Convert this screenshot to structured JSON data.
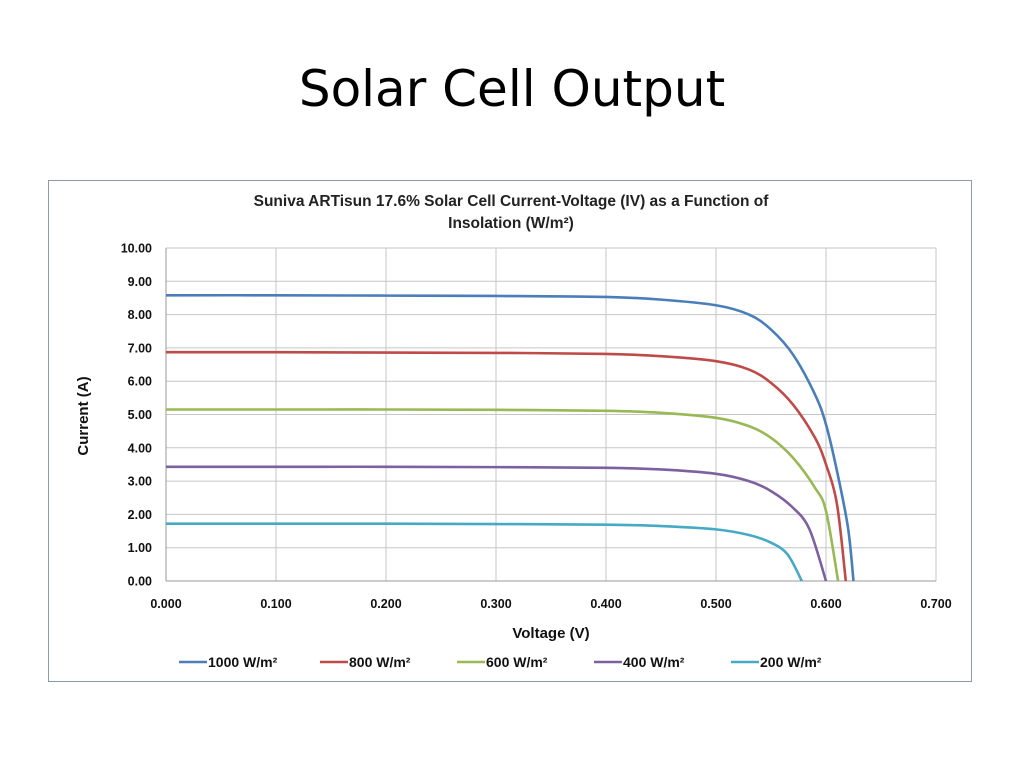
{
  "slide": {
    "title": "Solar Cell Output"
  },
  "chart_data": {
    "type": "line",
    "title_lines": [
      "Suniva ARTisun 17.6% Solar Cell Current-Voltage (IV) as a Function of",
      "Insolation (W/m²)"
    ],
    "xlabel": "Voltage (V)",
    "ylabel": "Current (A)",
    "xlim": [
      0,
      0.7
    ],
    "ylim": [
      0,
      10
    ],
    "x_ticks": [
      "0.000",
      "0.100",
      "0.200",
      "0.300",
      "0.400",
      "0.500",
      "0.600",
      "0.700"
    ],
    "y_ticks": [
      "0.00",
      "1.00",
      "2.00",
      "3.00",
      "4.00",
      "5.00",
      "6.00",
      "7.00",
      "8.00",
      "9.00",
      "10.00"
    ],
    "x_tick_values": [
      0,
      0.1,
      0.2,
      0.3,
      0.4,
      0.5,
      0.6,
      0.7
    ],
    "y_tick_values": [
      0,
      1,
      2,
      3,
      4,
      5,
      6,
      7,
      8,
      9,
      10
    ],
    "grid": true,
    "legend_position": "bottom",
    "series": [
      {
        "name": "1000 W/m²",
        "color": "#4a7ebb",
        "points": [
          [
            0,
            8.58
          ],
          [
            0.1,
            8.58
          ],
          [
            0.2,
            8.57
          ],
          [
            0.3,
            8.56
          ],
          [
            0.4,
            8.53
          ],
          [
            0.45,
            8.45
          ],
          [
            0.5,
            8.28
          ],
          [
            0.53,
            8.0
          ],
          [
            0.55,
            7.55
          ],
          [
            0.57,
            6.8
          ],
          [
            0.59,
            5.6
          ],
          [
            0.6,
            4.7
          ],
          [
            0.61,
            3.3
          ],
          [
            0.62,
            1.6
          ],
          [
            0.625,
            0.0
          ]
        ]
      },
      {
        "name": "800 W/m²",
        "color": "#be4b48",
        "points": [
          [
            0,
            6.87
          ],
          [
            0.1,
            6.87
          ],
          [
            0.2,
            6.86
          ],
          [
            0.3,
            6.85
          ],
          [
            0.4,
            6.82
          ],
          [
            0.45,
            6.75
          ],
          [
            0.5,
            6.6
          ],
          [
            0.53,
            6.35
          ],
          [
            0.55,
            5.95
          ],
          [
            0.57,
            5.3
          ],
          [
            0.59,
            4.3
          ],
          [
            0.6,
            3.5
          ],
          [
            0.61,
            2.3
          ],
          [
            0.618,
            0.0
          ]
        ]
      },
      {
        "name": "600 W/m²",
        "color": "#98b954",
        "points": [
          [
            0,
            5.15
          ],
          [
            0.1,
            5.15
          ],
          [
            0.2,
            5.15
          ],
          [
            0.3,
            5.14
          ],
          [
            0.4,
            5.11
          ],
          [
            0.45,
            5.05
          ],
          [
            0.5,
            4.9
          ],
          [
            0.53,
            4.65
          ],
          [
            0.55,
            4.3
          ],
          [
            0.57,
            3.7
          ],
          [
            0.59,
            2.8
          ],
          [
            0.6,
            2.1
          ],
          [
            0.611,
            0.0
          ]
        ]
      },
      {
        "name": "400 W/m²",
        "color": "#7d60a0",
        "points": [
          [
            0,
            3.43
          ],
          [
            0.1,
            3.43
          ],
          [
            0.2,
            3.43
          ],
          [
            0.3,
            3.42
          ],
          [
            0.4,
            3.4
          ],
          [
            0.45,
            3.35
          ],
          [
            0.5,
            3.22
          ],
          [
            0.53,
            3.0
          ],
          [
            0.55,
            2.7
          ],
          [
            0.57,
            2.2
          ],
          [
            0.585,
            1.55
          ],
          [
            0.6,
            0.0
          ]
        ]
      },
      {
        "name": "200 W/m²",
        "color": "#46aac5",
        "points": [
          [
            0,
            1.72
          ],
          [
            0.1,
            1.72
          ],
          [
            0.2,
            1.72
          ],
          [
            0.3,
            1.71
          ],
          [
            0.4,
            1.69
          ],
          [
            0.45,
            1.65
          ],
          [
            0.5,
            1.55
          ],
          [
            0.53,
            1.38
          ],
          [
            0.55,
            1.15
          ],
          [
            0.565,
            0.8
          ],
          [
            0.578,
            0.0
          ]
        ]
      }
    ]
  }
}
